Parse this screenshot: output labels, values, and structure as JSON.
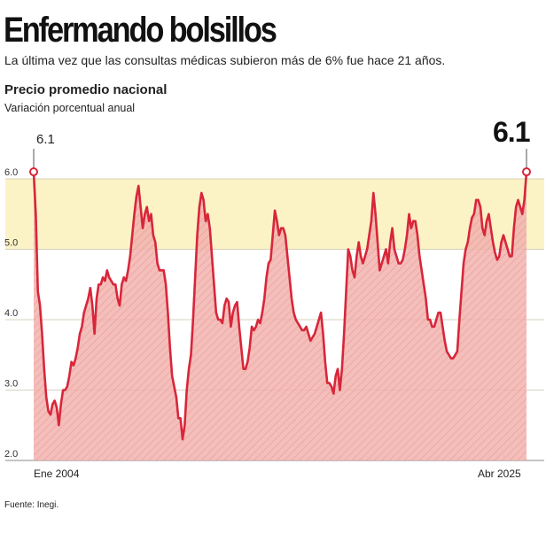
{
  "header": {
    "title": "Enfermando bolsillos",
    "subtitle": "La última vez que las consultas médicas subieron más de 6% fue hace 21 años."
  },
  "footer": {
    "source": "Fuente: Inegi."
  },
  "colors": {
    "line": "#d8263a",
    "area": "#f1a9a5",
    "highlight_band": "#fbf3c6",
    "grid": "#c9c5a8"
  },
  "chart_data": {
    "type": "area",
    "title": "Precio promedio nacional",
    "subtitle": "Variación porcentual anual",
    "ylim": [
      2.0,
      6.0
    ],
    "yticks": [
      "2.0",
      "3.0",
      "4.0",
      "5.0",
      "6.0"
    ],
    "x_start_label": "Ene 2004",
    "x_end_label": "Abr 2025",
    "x_start": "2004-01",
    "x_end": "2025-04",
    "highlight_band": [
      5.0,
      6.0
    ],
    "annotations": [
      {
        "x": "2004-01",
        "value": 6.1,
        "label": "6.1"
      },
      {
        "x": "2025-04",
        "value": 6.1,
        "label": "6.1"
      }
    ],
    "series": [
      {
        "values": [
          6.1,
          5.5,
          4.4,
          4.2,
          3.8,
          3.3,
          2.9,
          2.7,
          2.65,
          2.8,
          2.85,
          2.75,
          2.5,
          2.8,
          3.0,
          3.0,
          3.05,
          3.2,
          3.4,
          3.35,
          3.45,
          3.6,
          3.8,
          3.9,
          4.1,
          4.2,
          4.3,
          4.45,
          4.2,
          3.8,
          4.3,
          4.5,
          4.5,
          4.6,
          4.55,
          4.7,
          4.6,
          4.55,
          4.5,
          4.5,
          4.3,
          4.2,
          4.5,
          4.6,
          4.55,
          4.7,
          4.9,
          5.2,
          5.5,
          5.75,
          5.9,
          5.6,
          5.3,
          5.5,
          5.6,
          5.4,
          5.5,
          5.2,
          5.1,
          4.8,
          4.7,
          4.7,
          4.7,
          4.5,
          4.1,
          3.6,
          3.2,
          3.05,
          2.9,
          2.6,
          2.6,
          2.3,
          2.5,
          3.0,
          3.3,
          3.5,
          4.0,
          4.6,
          5.2,
          5.6,
          5.8,
          5.7,
          5.4,
          5.5,
          5.3,
          4.9,
          4.5,
          4.1,
          4.0,
          4.0,
          3.95,
          4.2,
          4.3,
          4.25,
          3.9,
          4.1,
          4.2,
          4.25,
          3.9,
          3.6,
          3.3,
          3.3,
          3.4,
          3.6,
          3.9,
          3.85,
          3.9,
          4.0,
          3.95,
          4.1,
          4.3,
          4.6,
          4.8,
          4.85,
          5.2,
          5.55,
          5.4,
          5.2,
          5.3,
          5.3,
          5.2,
          4.9,
          4.6,
          4.3,
          4.1,
          4.0,
          3.95,
          3.9,
          3.85,
          3.85,
          3.9,
          3.8,
          3.7,
          3.75,
          3.8,
          3.9,
          4.0,
          4.1,
          3.8,
          3.4,
          3.1,
          3.1,
          3.05,
          2.95,
          3.2,
          3.3,
          3.0,
          3.3,
          3.8,
          4.4,
          5.0,
          4.9,
          4.7,
          4.6,
          4.9,
          5.1,
          4.9,
          4.8,
          4.9,
          5.0,
          5.2,
          5.4,
          5.8,
          5.5,
          5.1,
          4.7,
          4.8,
          4.9,
          5.0,
          4.8,
          5.1,
          5.3,
          5.0,
          4.9,
          4.8,
          4.8,
          4.85,
          5.0,
          5.2,
          5.5,
          5.3,
          5.4,
          5.4,
          5.2,
          4.9,
          4.7,
          4.5,
          4.3,
          4.0,
          4.0,
          3.9,
          3.9,
          4.0,
          4.1,
          4.1,
          3.9,
          3.7,
          3.55,
          3.5,
          3.45,
          3.45,
          3.5,
          3.55,
          4.0,
          4.4,
          4.8,
          5.0,
          5.1,
          5.3,
          5.45,
          5.5,
          5.7,
          5.7,
          5.6,
          5.3,
          5.2,
          5.4,
          5.5,
          5.3,
          5.1,
          4.95,
          4.85,
          4.9,
          5.1,
          5.2,
          5.1,
          5.0,
          4.9,
          4.9,
          5.3,
          5.6,
          5.7,
          5.6,
          5.5,
          5.7,
          6.1
        ]
      }
    ]
  }
}
